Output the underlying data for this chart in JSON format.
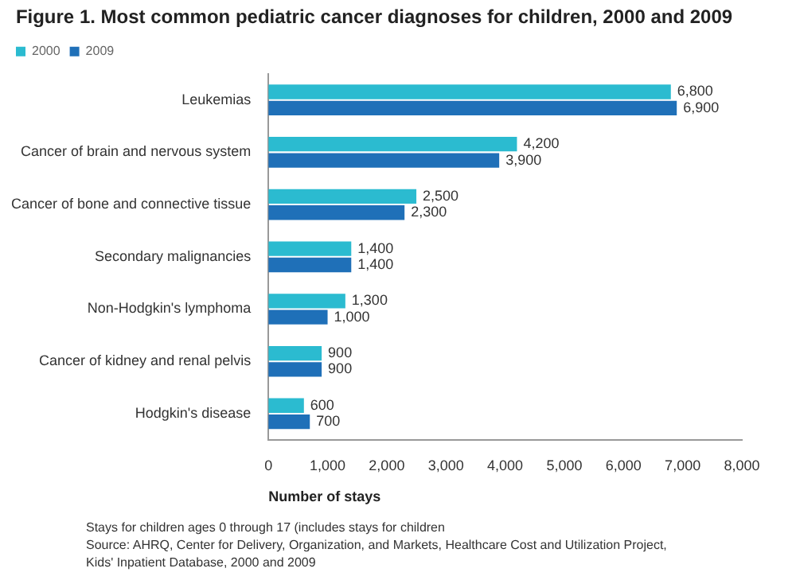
{
  "chart_data": {
    "type": "bar",
    "orientation": "horizontal",
    "title": "Figure 1. Most common pediatric cancer diagnoses for children, 2000 and 2009",
    "categories": [
      "Leukemias",
      "Cancer of brain and nervous system",
      "Cancer of bone and connective tissue",
      "Secondary malignancies",
      "Non-Hodgkin's lymphoma",
      "Cancer of kidney and renal pelvis",
      "Hodgkin's disease"
    ],
    "series": [
      {
        "name": "2000",
        "color": "#2bbbd0",
        "values": [
          6800,
          4200,
          2500,
          1400,
          1300,
          900,
          600
        ],
        "value_labels": [
          "6,800",
          "4,200",
          "2,500",
          "1,400",
          "1,300",
          "900",
          "600"
        ]
      },
      {
        "name": "2009",
        "color": "#1f70b8",
        "values": [
          6900,
          3900,
          2300,
          1400,
          1000,
          900,
          700
        ],
        "value_labels": [
          "6,900",
          "3,900",
          "2,300",
          "1,400",
          "1,000",
          "900",
          "700"
        ]
      }
    ],
    "xlabel": "Number of stays",
    "xlim": [
      0,
      8000
    ],
    "xticks": [
      {
        "value": 0,
        "label": "0"
      },
      {
        "value": 1000,
        "label": "1,000"
      },
      {
        "value": 2000,
        "label": "2,000"
      },
      {
        "value": 3000,
        "label": "3,000"
      },
      {
        "value": 4000,
        "label": "4,000"
      },
      {
        "value": 5000,
        "label": "5,000"
      },
      {
        "value": 6000,
        "label": "6,000"
      },
      {
        "value": 7000,
        "label": "7,000"
      },
      {
        "value": 8000,
        "label": "8,000"
      }
    ],
    "grid": false,
    "legend": "top left",
    "annotations": [
      "Stays for children ages 0 through 17 (includes stays for children",
      "Source: AHRQ, Center for Delivery, Organization, and Markets, Healthcare Cost and Utilization Project,",
      "Kids' Inpatient Database, 2000 and 2009"
    ]
  }
}
